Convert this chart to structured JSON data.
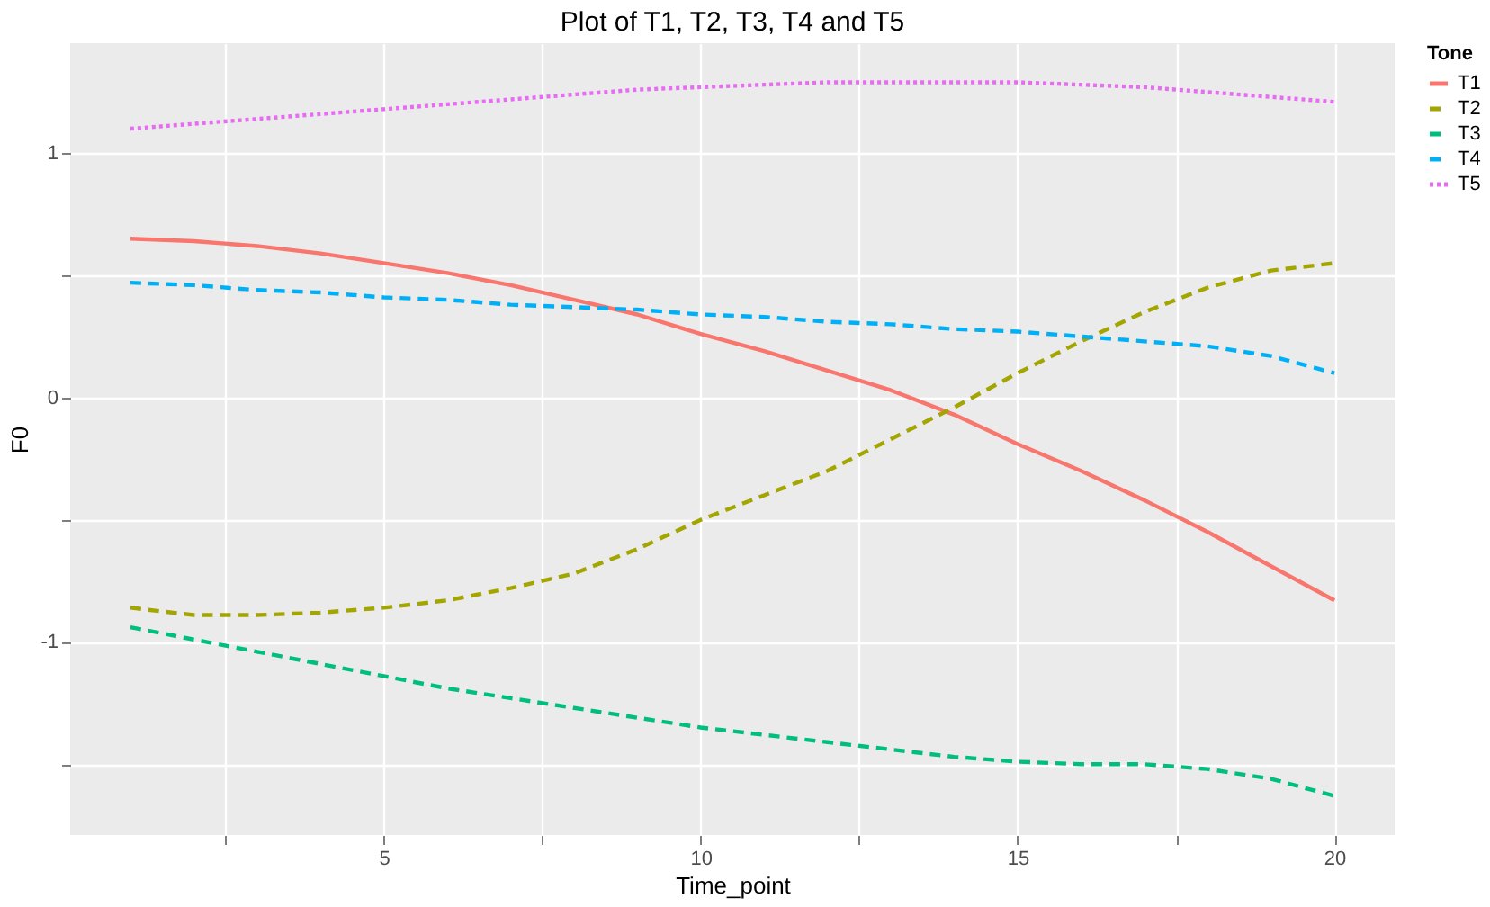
{
  "chart_data": {
    "type": "line",
    "title": "Plot of T1, T2, T3, T4 and T5",
    "xlabel": "Time_point",
    "ylabel": "F0",
    "legend_title": "Tone",
    "x": [
      1,
      2,
      3,
      4,
      5,
      6,
      7,
      8,
      9,
      10,
      11,
      12,
      13,
      14,
      15,
      16,
      17,
      18,
      19,
      20
    ],
    "series": [
      {
        "name": "T1",
        "color": "#f8766d",
        "line_style": "solid",
        "values": [
          0.65,
          0.64,
          0.62,
          0.59,
          0.55,
          0.51,
          0.46,
          0.4,
          0.34,
          0.26,
          0.19,
          0.11,
          0.03,
          -0.07,
          -0.19,
          -0.3,
          -0.42,
          -0.55,
          -0.69,
          -0.83
        ]
      },
      {
        "name": "T2",
        "color": "#a3a500",
        "line_style": "dashed",
        "values": [
          -0.86,
          -0.89,
          -0.89,
          -0.88,
          -0.86,
          -0.83,
          -0.78,
          -0.72,
          -0.62,
          -0.5,
          -0.4,
          -0.3,
          -0.17,
          -0.04,
          0.1,
          0.23,
          0.35,
          0.45,
          0.52,
          0.55
        ]
      },
      {
        "name": "T3",
        "color": "#00bf7d",
        "line_style": "dashed",
        "values": [
          -0.94,
          -0.99,
          -1.04,
          -1.09,
          -1.14,
          -1.19,
          -1.23,
          -1.27,
          -1.31,
          -1.35,
          -1.38,
          -1.41,
          -1.44,
          -1.47,
          -1.49,
          -1.5,
          -1.5,
          -1.52,
          -1.56,
          -1.63
        ]
      },
      {
        "name": "T4",
        "color": "#00b0f6",
        "line_style": "dashed",
        "values": [
          0.47,
          0.46,
          0.44,
          0.43,
          0.41,
          0.4,
          0.38,
          0.37,
          0.36,
          0.34,
          0.33,
          0.31,
          0.3,
          0.28,
          0.27,
          0.25,
          0.23,
          0.21,
          0.17,
          0.1
        ]
      },
      {
        "name": "T5",
        "color": "#e76bf3",
        "line_style": "dotted",
        "values": [
          1.1,
          1.12,
          1.14,
          1.16,
          1.18,
          1.2,
          1.22,
          1.24,
          1.26,
          1.27,
          1.28,
          1.29,
          1.29,
          1.29,
          1.29,
          1.28,
          1.27,
          1.25,
          1.23,
          1.21
        ]
      }
    ],
    "xlim": [
      0.05,
      20.95
    ],
    "xticks": [
      {
        "value": 2.5,
        "label": null
      },
      5,
      {
        "value": 7.5,
        "label": null
      },
      10,
      {
        "value": 12.5,
        "label": null
      },
      15,
      {
        "value": 17.5,
        "label": null
      },
      20
    ],
    "ylim": [
      -1.79,
      1.45
    ],
    "yticks": [
      {
        "value": -1.5,
        "label": null
      },
      -1,
      {
        "value": -0.5,
        "label": null
      },
      0,
      {
        "value": 0.5,
        "label": null
      },
      1
    ],
    "grid": true,
    "legend": "right",
    "marker": "none"
  }
}
